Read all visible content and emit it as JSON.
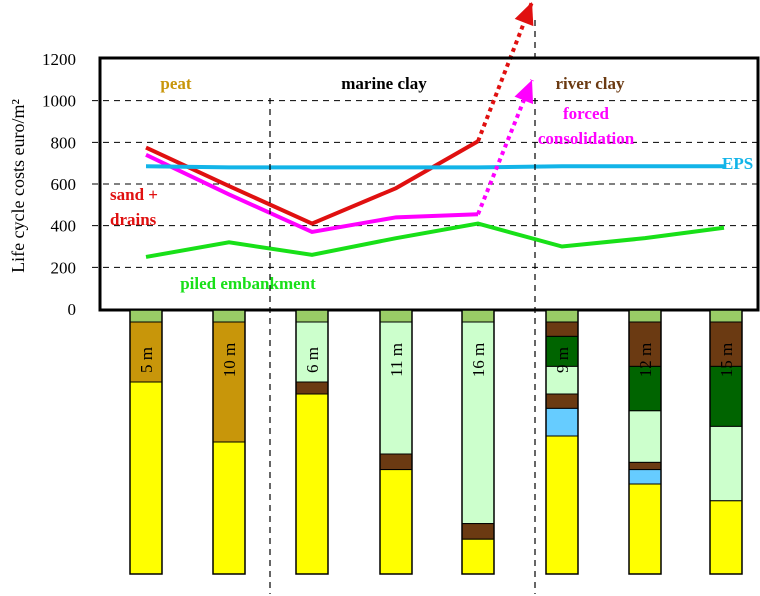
{
  "chart_data": {
    "type": "line",
    "ylabel": "Life cycle costs euro/m²",
    "ylim": [
      0,
      1200
    ],
    "y_ticks": [
      "1200",
      "1000",
      "800",
      "600",
      "400",
      "200",
      "0"
    ],
    "grid": "horizontal dashed",
    "zones": [
      {
        "label": "peat",
        "color": "#c8960a"
      },
      {
        "label": "marine clay",
        "color": "#000000"
      },
      {
        "label": "river clay",
        "color": "#6b3a12"
      }
    ],
    "columns": [
      "5 m",
      "10 m",
      "6 m",
      "11 m",
      "16 m",
      "9 m",
      "12 m",
      "15 m"
    ],
    "series": [
      {
        "name": "sand + drains",
        "color": "#e01010",
        "values": [
          775,
          590,
          410,
          580,
          805,
          null,
          null,
          null
        ],
        "extends_off_chart": true
      },
      {
        "name": "forced consolidation",
        "color": "#ff00ff",
        "values": [
          740,
          550,
          370,
          440,
          455,
          null,
          null,
          null
        ],
        "extends_off_chart": true
      },
      {
        "name": "EPS",
        "color": "#12b4e8",
        "values": [
          685,
          680,
          680,
          680,
          680,
          685,
          685,
          685
        ]
      },
      {
        "name": "piled embankment",
        "color": "#18e018",
        "values": [
          250,
          320,
          260,
          340,
          410,
          300,
          340,
          390
        ]
      }
    ],
    "series_labels": [
      [
        "sand +",
        "drains"
      ],
      [
        "forced",
        "consolidation"
      ],
      [
        "EPS"
      ],
      [
        "piled embankment"
      ]
    ],
    "soil_legend": {
      "sand": "#ffff00",
      "peat": "#c8960a",
      "marine_clay": "#ccffcc",
      "river_clay_dark": "#006400",
      "organic_layer": "#6b3a12",
      "water_sand": "#66ccff",
      "top_layer": "#99cc66"
    },
    "soil_columns": [
      {
        "label": "5 m",
        "layers": [
          [
            "top",
            1
          ],
          [
            "peat",
            5
          ],
          [
            "sand",
            16
          ]
        ]
      },
      {
        "label": "10 m",
        "layers": [
          [
            "top",
            1
          ],
          [
            "peat",
            10
          ],
          [
            "sand",
            11
          ]
        ]
      },
      {
        "label": "6 m",
        "layers": [
          [
            "top",
            1
          ],
          [
            "clay",
            5
          ],
          [
            "org",
            1
          ],
          [
            "sand",
            15
          ]
        ]
      },
      {
        "label": "11 m",
        "layers": [
          [
            "top",
            1
          ],
          [
            "clay",
            11
          ],
          [
            "org",
            1.3
          ],
          [
            "sand",
            8.7
          ]
        ]
      },
      {
        "label": "16 m",
        "layers": [
          [
            "top",
            1
          ],
          [
            "clay",
            16.8
          ],
          [
            "org",
            1.3
          ],
          [
            "sand",
            2.9
          ]
        ]
      },
      {
        "label": "9 m",
        "layers": [
          [
            "top",
            1
          ],
          [
            "org",
            1.2
          ],
          [
            "dark",
            2.5
          ],
          [
            "clay",
            2.3
          ],
          [
            "org",
            1.2
          ],
          [
            "water",
            2.3
          ],
          [
            "sand",
            11.5
          ]
        ]
      },
      {
        "label": "12 m",
        "layers": [
          [
            "top",
            1
          ],
          [
            "org",
            3.7
          ],
          [
            "dark",
            3.7
          ],
          [
            "clay",
            4.3
          ],
          [
            "org",
            0.6
          ],
          [
            "water",
            1.2
          ],
          [
            "sand",
            7.5
          ]
        ]
      },
      {
        "label": "15 m",
        "layers": [
          [
            "top",
            1
          ],
          [
            "org",
            3.7
          ],
          [
            "dark",
            5
          ],
          [
            "clay",
            6.2
          ],
          [
            "sand",
            6.1
          ]
        ]
      }
    ]
  }
}
